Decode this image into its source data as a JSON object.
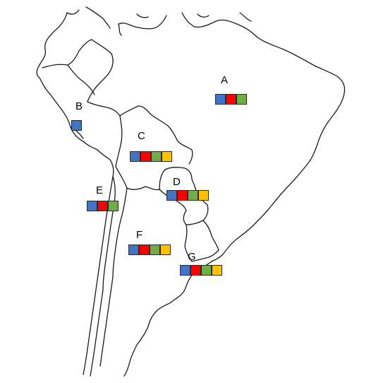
{
  "colors": {
    "blue": "#4472C4",
    "red": "#FF0000",
    "green": "#70AD47",
    "yellow": "#FFC000"
  },
  "regions": [
    {
      "id": "A",
      "label": "A",
      "swatches": [
        "blue",
        "red",
        "green"
      ]
    },
    {
      "id": "B",
      "label": "B",
      "swatches": [
        "blue"
      ]
    },
    {
      "id": "C",
      "label": "C",
      "swatches": [
        "blue",
        "red",
        "green",
        "yellow"
      ]
    },
    {
      "id": "D",
      "label": "D",
      "swatches": [
        "blue",
        "red",
        "green",
        "yellow"
      ]
    },
    {
      "id": "E",
      "label": "E",
      "swatches": [
        "blue",
        "red",
        "green"
      ]
    },
    {
      "id": "F",
      "label": "F",
      "swatches": [
        "blue",
        "red",
        "green",
        "yellow"
      ]
    },
    {
      "id": "G",
      "label": "G",
      "swatches": [
        "blue",
        "red",
        "green",
        "yellow"
      ]
    }
  ]
}
